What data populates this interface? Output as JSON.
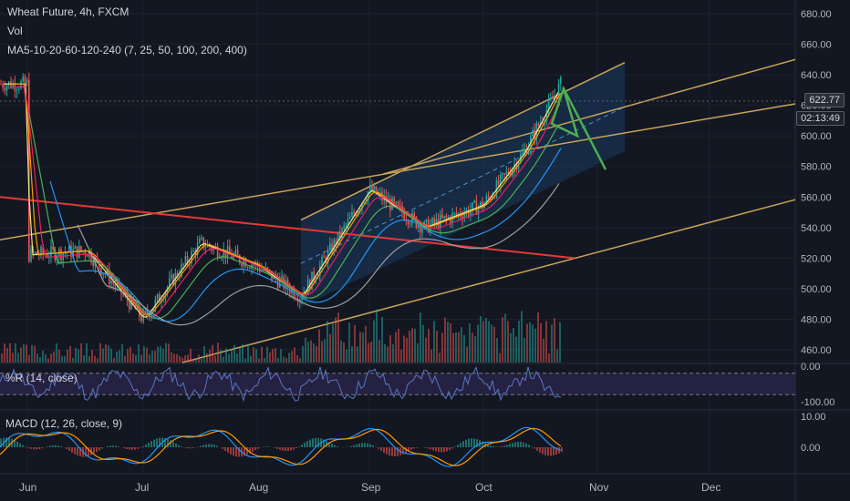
{
  "header": {
    "title": "Wheat Future, 4h, FXCM",
    "vol_label": "Vol",
    "ma_label": "MA5-10-20-60-120-240 (7, 25, 50, 100, 200, 400)"
  },
  "panes": {
    "wr_label": "%R (14, close)",
    "macd_label": "MACD (12, 26, close, 9)"
  },
  "price_tags": {
    "last_price": "622.77",
    "countdown": "02:13:49"
  },
  "colors": {
    "background": "#131722",
    "grid": "#1e222d",
    "up_candle": "#26a69a",
    "down_candle": "#ef5350",
    "channel_fill": "#1c3a5e",
    "channel_line": "#c8a45a",
    "red_trendline": "#e53935",
    "green_arrow": "#4caf50",
    "wr_band": "#2a2448",
    "wr_line": "#5b76c6",
    "macd_line": "#2196f3",
    "signal_line": "#ff9800"
  },
  "chart_data": [
    {
      "type": "line",
      "title": "Wheat Future, 4h, FXCM",
      "x_tick_labels": [
        "Jun",
        "Jul",
        "Aug",
        "Sep",
        "Oct",
        "Nov",
        "Dec"
      ],
      "y_tick_labels": [
        "680.00",
        "660.00",
        "640.00",
        "620.00",
        "600.00",
        "580.00",
        "560.00",
        "540.00",
        "520.00",
        "500.00",
        "480.00",
        "460.00"
      ],
      "ylim": [
        452,
        684
      ],
      "x_positions": [
        "Jun",
        "Jun-m",
        "Jul",
        "Jul-m",
        "Aug",
        "Aug-m",
        "Sep",
        "Sep-m",
        "Oct",
        "Oct-m",
        "late-Oct"
      ],
      "series": [
        {
          "values": [
            522,
            525,
            480,
            530,
            515,
            495,
            565,
            540,
            555,
            590,
            634
          ]
        }
      ],
      "annotations": {
        "ascending_channel": {
          "upper_start": 545,
          "upper_end": 648,
          "lower_start": 488,
          "lower_end": 590,
          "start": "Aug-m",
          "end": "Nov"
        },
        "red_trendline": {
          "start_value": 560,
          "end_value": 520,
          "start": "May",
          "end": "Nov"
        },
        "green_projection": {
          "from": 631,
          "to": 578
        }
      },
      "legend": "top-left",
      "grid": true
    },
    {
      "type": "line",
      "title": "%R (14, close)",
      "y_tick_labels": [
        "0.00",
        "-100.00"
      ],
      "ylim": [
        -110,
        5
      ],
      "bands": [
        -20,
        -80
      ]
    },
    {
      "type": "line",
      "title": "MACD (12, 26, close, 9)",
      "y_tick_labels": [
        "10.00",
        "0.00"
      ],
      "ylim": [
        -8,
        12
      ]
    }
  ]
}
